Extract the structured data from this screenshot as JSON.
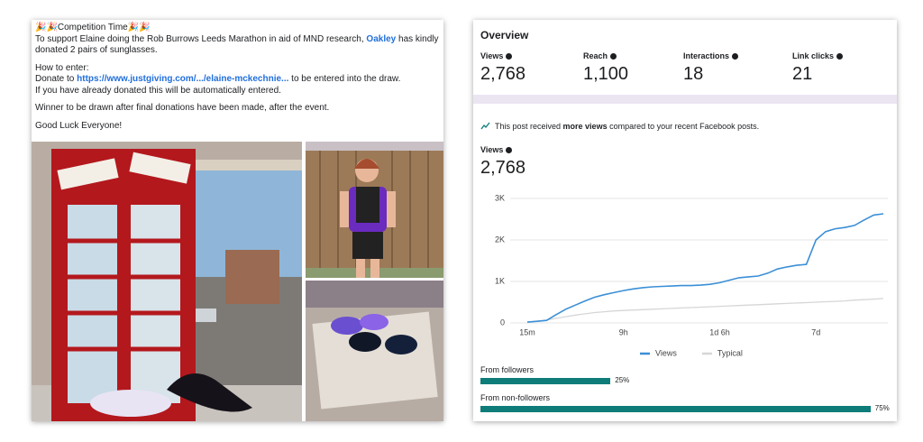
{
  "post": {
    "title": "🎉🎉Competition Time🎉🎉",
    "intro": [
      "To support Elaine doing the Rob Burrows Leeds Marathon in aid of MND research, ",
      "Oakley",
      "  has kindly donated 2 pairs of sunglasses."
    ],
    "how_to": "How to enter:",
    "donate": [
      "Donate to ",
      "https://www.justgiving.com/.../elaine-mckechnie...",
      " to be entered into the draw."
    ],
    "already": "If you have already donated this will be automatically entered.",
    "winner": "Winner to be drawn after final donations have been made, after the event.",
    "closing": "Good Luck Everyone!"
  },
  "overview": {
    "title": "Overview",
    "metrics": [
      {
        "label": "Views",
        "value": "2,768"
      },
      {
        "label": "Reach",
        "value": "1,100"
      },
      {
        "label": "Interactions",
        "value": "18"
      },
      {
        "label": "Link clicks",
        "value": "21"
      }
    ],
    "notice": [
      "This post received ",
      "more views",
      " compared to your recent Facebook posts."
    ]
  },
  "chart_data": {
    "type": "line",
    "title": "Views",
    "subtitle": "2,768",
    "categories": [
      "15m",
      null,
      null,
      null,
      null,
      null,
      null,
      null,
      null,
      null,
      "9h",
      null,
      null,
      null,
      null,
      null,
      null,
      null,
      null,
      null,
      "1d 6h",
      null,
      null,
      null,
      null,
      null,
      null,
      null,
      null,
      null,
      "7d",
      null,
      null,
      null,
      null,
      null,
      null,
      null
    ],
    "series": [
      {
        "name": "Views",
        "color": "#3b8fd6",
        "values": [
          20,
          40,
          60,
          200,
          330,
          430,
          530,
          620,
          680,
          730,
          780,
          820,
          850,
          870,
          880,
          890,
          900,
          900,
          910,
          930,
          970,
          1030,
          1090,
          1110,
          1130,
          1200,
          1300,
          1350,
          1390,
          1410,
          2000,
          2200,
          2270,
          2300,
          2350,
          2480,
          2600,
          2630
        ]
      },
      {
        "name": "Typical",
        "color": "#d6d6d6",
        "values": [
          20,
          40,
          70,
          110,
          150,
          190,
          220,
          250,
          270,
          290,
          300,
          310,
          320,
          330,
          340,
          350,
          360,
          370,
          380,
          390,
          400,
          410,
          420,
          430,
          440,
          450,
          460,
          470,
          480,
          490,
          500,
          510,
          520,
          530,
          550,
          560,
          575,
          590
        ]
      }
    ],
    "ylim": [
      0,
      3000
    ],
    "yticks": [
      0,
      {
        "value": 1000,
        "label": "1K"
      },
      {
        "value": 2000,
        "label": "2K"
      },
      {
        "value": 3000,
        "label": "3K"
      }
    ],
    "grid": true
  },
  "audience": {
    "color": "#0e7c78",
    "items": [
      {
        "label": "From followers",
        "value": 25,
        "value_label": "25%"
      },
      {
        "label": "From non-followers",
        "value": 75,
        "value_label": "75%"
      }
    ]
  }
}
